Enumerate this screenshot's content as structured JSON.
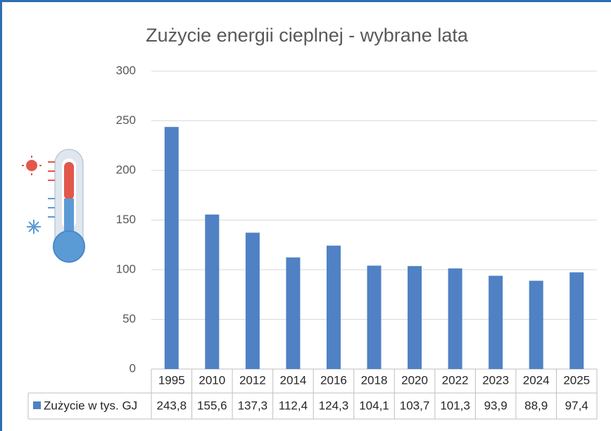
{
  "chart_data": {
    "type": "bar",
    "title": "Zużycie energii cieplnej - wybrane lata",
    "categories": [
      "1995",
      "2010",
      "2012",
      "2014",
      "2016",
      "2018",
      "2020",
      "2022",
      "2023",
      "2024",
      "2025"
    ],
    "series": [
      {
        "name": "Zużycie w tys. GJ",
        "color": "#4f81c4",
        "values": [
          243.8,
          155.6,
          137.3,
          112.4,
          124.3,
          104.1,
          103.7,
          101.3,
          93.9,
          88.9,
          97.4
        ],
        "value_labels": [
          "243,8",
          "155,6",
          "137,3",
          "112,4",
          "124,3",
          "104,1",
          "103,7",
          "101,3",
          "93,9",
          "88,9",
          "97,4"
        ]
      }
    ],
    "ylim": [
      0,
      300
    ],
    "yticks": [
      0,
      50,
      100,
      150,
      200,
      250,
      300
    ],
    "grid": true
  }
}
